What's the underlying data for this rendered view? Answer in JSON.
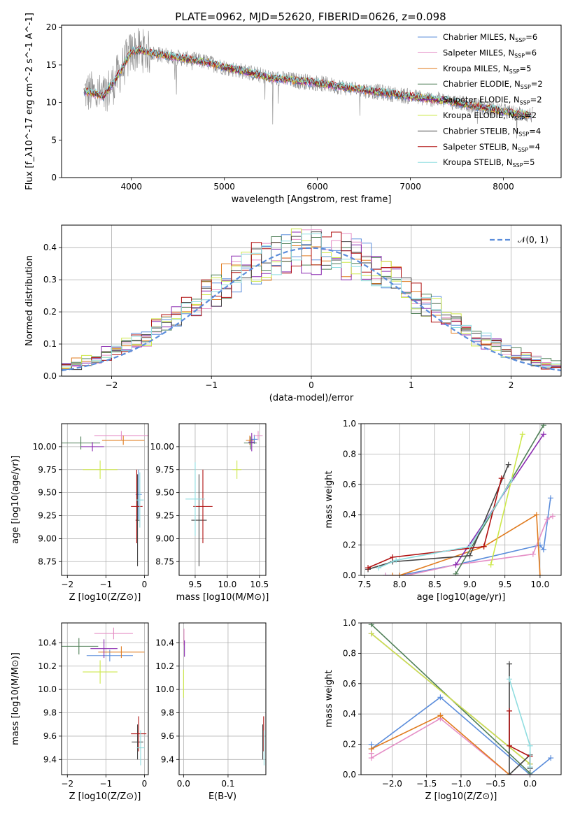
{
  "figure_title": "PLATE=0962, MJD=52620, FIBERID=0626, z=0.098",
  "colors": {
    "Chabrier MILES": "#5b8ddb",
    "Salpeter MILES": "#e58fc6",
    "Kroupa MILES": "#e07b1f",
    "Chabrier ELODIE": "#4f7f57",
    "Salpeter ELODIE": "#8a2ab0",
    "Kroupa ELODIE": "#cde84b",
    "Chabrier STELIB": "#444444",
    "Salpeter STELIB": "#b01010",
    "Kroupa STELIB": "#8fdde0",
    "data": "#888888",
    "normal": "#5b8ddb",
    "grid": "#b0b0b0"
  },
  "chart_data": [
    {
      "id": "spectrum",
      "type": "line",
      "xlabel": "wavelength [Angstrom, rest frame]",
      "ylabel": "Flux [f_λ10^-17 erg cm^-2 s^-1 A^-1]",
      "xlim": [
        3250,
        8620
      ],
      "ylim": [
        0,
        20.3
      ],
      "xticks": [
        4000,
        5000,
        6000,
        7000,
        8000
      ],
      "yticks": [
        0,
        5,
        10,
        15,
        20
      ],
      "grid": false,
      "legend_position": "top-right",
      "continuum": {
        "x": [
          3500,
          3600,
          3700,
          3800,
          3900,
          4000,
          4100,
          4200,
          4400,
          4600,
          4800,
          5000,
          5200,
          5500,
          5800,
          6000,
          6300,
          6600,
          7000,
          7400,
          7800,
          8100,
          8300
        ],
        "y": [
          11.5,
          11.2,
          10.8,
          12.5,
          14.5,
          16.8,
          17.0,
          16.6,
          16.2,
          15.8,
          15.4,
          14.7,
          14.2,
          13.3,
          12.9,
          12.6,
          12.0,
          11.5,
          10.8,
          10.2,
          9.3,
          8.6,
          8.3
        ]
      },
      "series": [
        {
          "name": "Chabrier MILES",
          "nssp": "6"
        },
        {
          "name": "Salpeter MILES",
          "nssp": "6"
        },
        {
          "name": "Kroupa MILES",
          "nssp": "5"
        },
        {
          "name": "Chabrier ELODIE",
          "nssp": "2"
        },
        {
          "name": "Salpeter ELODIE",
          "nssp": "2"
        },
        {
          "name": "Kroupa ELODIE",
          "nssp": "2"
        },
        {
          "name": "Chabrier STELIB",
          "nssp": "4"
        },
        {
          "name": "Salpeter STELIB",
          "nssp": "4"
        },
        {
          "name": "Kroupa STELIB",
          "nssp": "5"
        }
      ]
    },
    {
      "id": "residuals",
      "type": "line",
      "xlabel": "(data-model)/error",
      "ylabel": "Normed distribution",
      "xlim": [
        -2.5,
        2.5
      ],
      "ylim": [
        0,
        0.47
      ],
      "xticks": [
        -2,
        -1,
        0,
        1,
        2
      ],
      "yticks": [
        0.0,
        0.1,
        0.2,
        0.3,
        0.4
      ],
      "grid": true,
      "legend": "𝒩(0, 1)",
      "legend_position": "top-right",
      "bins": {
        "start": -2.5,
        "width": 0.1,
        "count": 50
      }
    },
    {
      "id": "age_vs_Z",
      "type": "scatter",
      "xlabel": "Z [log10(Z/Z⊙)]",
      "ylabel": "age [log10(age/yr)]",
      "xlim": [
        -2.15,
        0.1
      ],
      "ylim": [
        8.6,
        10.25
      ],
      "xticks": [
        -2,
        -1,
        0
      ],
      "yticks": [
        8.75,
        9.0,
        9.25,
        9.5,
        9.75,
        10.0
      ],
      "grid": true,
      "points": [
        {
          "series": "Chabrier MILES",
          "x": -0.15,
          "y": 9.48,
          "xerr": 0.08,
          "yerr": 0.27
        },
        {
          "series": "Salpeter MILES",
          "x": -0.6,
          "y": 10.12,
          "xerr": 0.7,
          "yerr": 0.05
        },
        {
          "series": "Kroupa MILES",
          "x": -0.55,
          "y": 10.07,
          "xerr": 0.55,
          "yerr": 0.05
        },
        {
          "series": "Chabrier ELODIE",
          "x": -1.65,
          "y": 10.04,
          "xerr": 0.5,
          "yerr": 0.07
        },
        {
          "series": "Salpeter ELODIE",
          "x": -1.35,
          "y": 10.0,
          "xerr": 0.3,
          "yerr": 0.05
        },
        {
          "series": "Kroupa ELODIE",
          "x": -1.15,
          "y": 9.75,
          "xerr": 0.45,
          "yerr": 0.1
        },
        {
          "series": "Chabrier STELIB",
          "x": -0.18,
          "y": 9.2,
          "xerr": 0.05,
          "yerr": 0.5
        },
        {
          "series": "Salpeter STELIB",
          "x": -0.2,
          "y": 9.35,
          "xerr": 0.15,
          "yerr": 0.4
        },
        {
          "series": "Kroupa STELIB",
          "x": -0.12,
          "y": 9.42,
          "xerr": 0.1,
          "yerr": 0.3
        }
      ]
    },
    {
      "id": "age_vs_mass",
      "type": "scatter",
      "xlabel": "mass [log10(M/M⊙)]",
      "ylabel": "",
      "xlim": [
        9.25,
        10.6
      ],
      "ylim": [
        8.6,
        10.25
      ],
      "xticks": [
        9.5,
        10.0,
        10.5
      ],
      "yticks": [
        8.75,
        9.0,
        9.25,
        9.5,
        9.75,
        10.0
      ],
      "grid": true,
      "points": [
        {
          "series": "Chabrier MILES",
          "x": 10.42,
          "y": 10.08,
          "xerr": 0.05,
          "yerr": 0.05
        },
        {
          "series": "Salpeter MILES",
          "x": 10.48,
          "y": 10.12,
          "xerr": 0.07,
          "yerr": 0.05
        },
        {
          "series": "Kroupa MILES",
          "x": 10.35,
          "y": 10.07,
          "xerr": 0.06,
          "yerr": 0.05
        },
        {
          "series": "Chabrier ELODIE",
          "x": 10.36,
          "y": 10.04,
          "xerr": 0.1,
          "yerr": 0.07
        },
        {
          "series": "Salpeter ELODIE",
          "x": 10.38,
          "y": 10.05,
          "xerr": 0.05,
          "yerr": 0.1
        },
        {
          "series": "Kroupa ELODIE",
          "x": 10.15,
          "y": 9.75,
          "xerr": 0.07,
          "yerr": 0.1
        },
        {
          "series": "Chabrier STELIB",
          "x": 9.56,
          "y": 9.2,
          "xerr": 0.12,
          "yerr": 0.5
        },
        {
          "series": "Salpeter STELIB",
          "x": 9.62,
          "y": 9.35,
          "xerr": 0.15,
          "yerr": 0.4
        },
        {
          "series": "Kroupa STELIB",
          "x": 9.5,
          "y": 9.43,
          "xerr": 0.15,
          "yerr": 0.4
        }
      ]
    },
    {
      "id": "mass_weight_vs_age",
      "type": "line",
      "xlabel": "age [log10(age/yr)]",
      "ylabel": "mass weight",
      "xlim": [
        7.45,
        10.3
      ],
      "ylim": [
        0,
        1.0
      ],
      "xticks": [
        7.5,
        8.0,
        8.5,
        9.0,
        9.5,
        10.0
      ],
      "yticks": [
        0.0,
        0.2,
        0.4,
        0.6,
        0.8,
        1.0
      ],
      "grid": true,
      "series": [
        {
          "name": "Chabrier MILES",
          "x": [
            7.8,
            8.0,
            8.8,
            10.0,
            10.05,
            10.15
          ],
          "y": [
            0.0,
            0.0,
            0.07,
            0.2,
            0.17,
            0.51
          ]
        },
        {
          "name": "Salpeter MILES",
          "x": [
            7.8,
            8.1,
            8.8,
            9.9,
            10.1,
            10.18
          ],
          "y": [
            0.0,
            0.0,
            0.07,
            0.14,
            0.37,
            0.39
          ]
        },
        {
          "name": "Kroupa MILES",
          "x": [
            7.9,
            8.0,
            9.2,
            9.95,
            10.0
          ],
          "y": [
            0.0,
            0.0,
            0.19,
            0.4,
            0.0
          ]
        },
        {
          "name": "Chabrier ELODIE",
          "x": [
            8.8,
            10.05
          ],
          "y": [
            0.01,
            0.99
          ]
        },
        {
          "name": "Salpeter ELODIE",
          "x": [
            8.8,
            10.05
          ],
          "y": [
            0.07,
            0.93
          ]
        },
        {
          "name": "Kroupa ELODIE",
          "x": [
            9.3,
            9.75
          ],
          "y": [
            0.07,
            0.93
          ]
        },
        {
          "name": "Chabrier STELIB",
          "x": [
            7.55,
            7.9,
            9.0,
            9.55
          ],
          "y": [
            0.04,
            0.09,
            0.13,
            0.73
          ]
        },
        {
          "name": "Salpeter STELIB",
          "x": [
            7.55,
            7.9,
            9.2,
            9.45
          ],
          "y": [
            0.05,
            0.12,
            0.19,
            0.64
          ]
        },
        {
          "name": "Kroupa STELIB",
          "x": [
            7.7,
            7.95,
            9.0,
            9.6
          ],
          "y": [
            0.05,
            0.1,
            0.19,
            0.63
          ]
        }
      ]
    },
    {
      "id": "mass_vs_Z",
      "type": "scatter",
      "xlabel": "Z [log10(Z/Z⊙)]",
      "ylabel": "mass [log10(M/M⊙)]",
      "xlim": [
        -2.15,
        0.1
      ],
      "ylim": [
        9.27,
        10.57
      ],
      "xticks": [
        -2,
        -1,
        0
      ],
      "yticks": [
        9.4,
        9.6,
        9.8,
        10.0,
        10.2,
        10.4
      ],
      "grid": true,
      "points": [
        {
          "series": "Chabrier MILES",
          "x": -0.9,
          "y": 10.29,
          "xerr": 0.6,
          "yerr": 0.05
        },
        {
          "series": "Salpeter MILES",
          "x": -0.8,
          "y": 10.48,
          "xerr": 0.5,
          "yerr": 0.05
        },
        {
          "series": "Kroupa MILES",
          "x": -0.6,
          "y": 10.32,
          "xerr": 0.6,
          "yerr": 0.05
        },
        {
          "series": "Chabrier ELODIE",
          "x": -1.7,
          "y": 10.37,
          "xerr": 0.5,
          "yerr": 0.07
        },
        {
          "series": "Salpeter ELODIE",
          "x": -1.05,
          "y": 10.35,
          "xerr": 0.35,
          "yerr": 0.08
        },
        {
          "series": "Kroupa ELODIE",
          "x": -1.15,
          "y": 10.15,
          "xerr": 0.45,
          "yerr": 0.1
        },
        {
          "series": "Chabrier STELIB",
          "x": -0.18,
          "y": 9.55,
          "xerr": 0.15,
          "yerr": 0.15
        },
        {
          "series": "Salpeter STELIB",
          "x": -0.15,
          "y": 9.62,
          "xerr": 0.2,
          "yerr": 0.15
        },
        {
          "series": "Kroupa STELIB",
          "x": -0.1,
          "y": 9.5,
          "xerr": 0.1,
          "yerr": 0.15
        }
      ]
    },
    {
      "id": "mass_vs_ebv",
      "type": "scatter",
      "xlabel": "E(B-V)",
      "ylabel": "",
      "xlim": [
        -0.01,
        0.185
      ],
      "ylim": [
        9.27,
        10.57
      ],
      "xticks": [
        0.0,
        0.1
      ],
      "yticks": [
        9.4,
        9.6,
        9.8,
        10.0,
        10.2,
        10.4
      ],
      "grid": true,
      "points": [
        {
          "series": "Salpeter MILES",
          "x": 0.001,
          "y": 10.45,
          "xerr": 0.0,
          "yerr": 0.07
        },
        {
          "series": "Salpeter ELODIE",
          "x": 0.002,
          "y": 10.35,
          "xerr": 0.0,
          "yerr": 0.07
        },
        {
          "series": "Kroupa ELODIE",
          "x": 0.0,
          "y": 10.05,
          "xerr": 0.0,
          "yerr": 0.12
        },
        {
          "series": "Chabrier STELIB",
          "x": 0.178,
          "y": 9.55,
          "xerr": 0.0,
          "yerr": 0.15
        },
        {
          "series": "Salpeter STELIB",
          "x": 0.18,
          "y": 9.62,
          "xerr": 0.0,
          "yerr": 0.15
        },
        {
          "series": "Kroupa STELIB",
          "x": 0.181,
          "y": 9.5,
          "xerr": 0.0,
          "yerr": 0.15
        }
      ]
    },
    {
      "id": "mass_weight_vs_Z",
      "type": "line",
      "xlabel": "Z [log10(Z/Z⊙)]",
      "ylabel": "mass weight",
      "xlim": [
        -2.45,
        0.45
      ],
      "ylim": [
        0,
        1.0
      ],
      "xticks": [
        -2.0,
        -1.5,
        -1.0,
        -0.5,
        0.0
      ],
      "yticks": [
        0.0,
        0.2,
        0.4,
        0.6,
        0.8,
        1.0
      ],
      "grid": true,
      "series": [
        {
          "name": "Chabrier MILES",
          "x": [
            -2.3,
            -2.3,
            -1.3,
            0.0,
            0.3
          ],
          "y": [
            0.2,
            0.17,
            0.51,
            0.0,
            0.11
          ]
        },
        {
          "name": "Salpeter MILES",
          "x": [
            -2.3,
            -2.3,
            -1.3,
            -0.3,
            0.0
          ],
          "y": [
            0.14,
            0.11,
            0.37,
            0.0,
            0.0
          ]
        },
        {
          "name": "Kroupa MILES",
          "x": [
            -2.3,
            -1.3,
            -0.3
          ],
          "y": [
            0.17,
            0.39,
            0.0
          ]
        },
        {
          "name": "Chabrier ELODIE",
          "x": [
            -2.3,
            0.0
          ],
          "y": [
            0.99,
            0.01
          ]
        },
        {
          "name": "Salpeter ELODIE",
          "x": [
            -2.3,
            0.0
          ],
          "y": [
            0.93,
            0.07
          ]
        },
        {
          "name": "Kroupa ELODIE",
          "x": [
            -2.3,
            0.0
          ],
          "y": [
            0.93,
            0.07
          ]
        },
        {
          "name": "Chabrier STELIB",
          "x": [
            -0.3,
            -0.3,
            0.0,
            0.0
          ],
          "y": [
            0.73,
            0.0,
            0.13,
            0.04
          ]
        },
        {
          "name": "Salpeter STELIB",
          "x": [
            -0.3,
            -0.3,
            0.0,
            0.0
          ],
          "y": [
            0.42,
            0.19,
            0.12,
            0.05
          ]
        },
        {
          "name": "Kroupa STELIB",
          "x": [
            -0.3,
            0.0,
            0.0
          ],
          "y": [
            0.63,
            0.19,
            0.05
          ]
        }
      ]
    }
  ]
}
